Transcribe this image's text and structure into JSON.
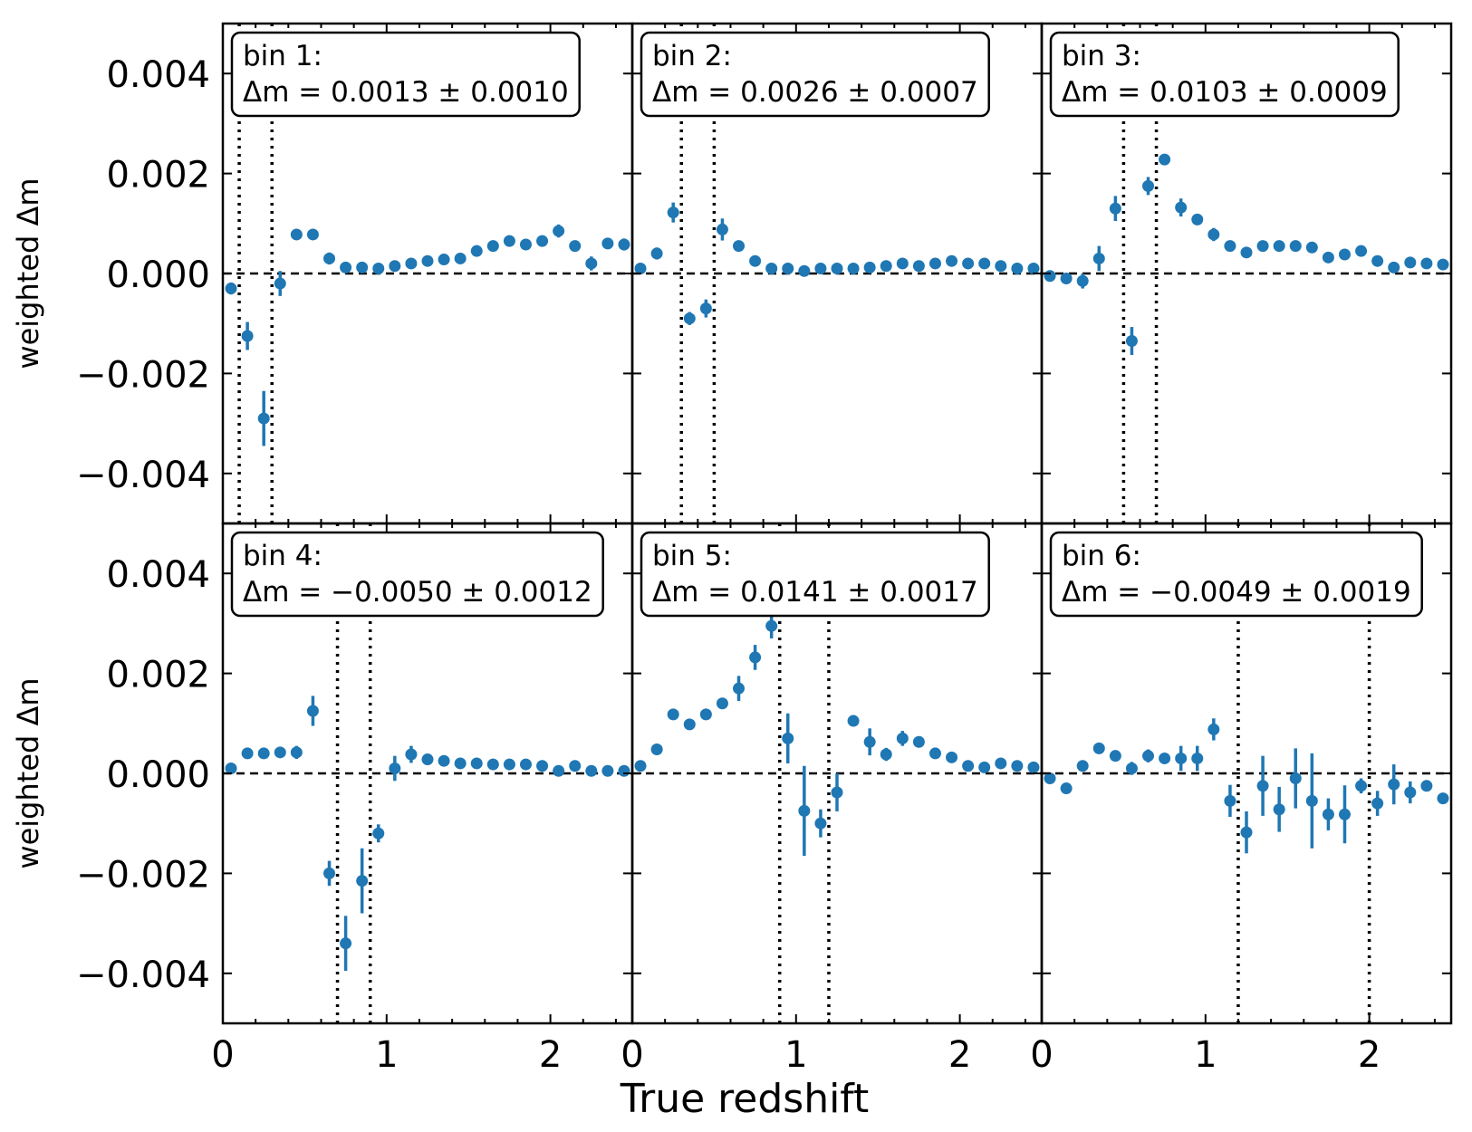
{
  "figure": {
    "xlabel": "True redshift",
    "ylabel_prefix": "weighted ",
    "ylabel_symbol": "Δm"
  },
  "colors": {
    "points": "#1f77b4",
    "axes": "#000000",
    "zero_line": "#000000",
    "bin_edges": "#000000",
    "legend_border": "#000000",
    "background": "#ffffff"
  },
  "chart_data": {
    "type": "scatter",
    "xlim": [
      0,
      2.5
    ],
    "ylim": [
      -0.005,
      0.005
    ],
    "x_ticks": [
      0,
      1,
      2
    ],
    "x_tick_labels": [
      "0",
      "1",
      "2"
    ],
    "y_ticks": [
      -0.004,
      -0.002,
      0.0,
      0.002,
      0.004
    ],
    "y_tick_labels": [
      "−0.004",
      "−0.002",
      "0.000",
      "0.002",
      "0.004"
    ],
    "reference_line": 0,
    "panels": [
      {
        "name": "bin 1",
        "label": "bin 1:",
        "stat_prefix": "Δm = ",
        "stat_value": "0.0013 ± 0.0010",
        "bin_edges": [
          0.1,
          0.3
        ],
        "x": [
          0.05,
          0.15,
          0.25,
          0.35,
          0.45,
          0.55,
          0.65,
          0.75,
          0.85,
          0.95,
          1.05,
          1.15,
          1.25,
          1.35,
          1.45,
          1.55,
          1.65,
          1.75,
          1.85,
          1.95,
          2.05,
          2.15,
          2.25,
          2.35,
          2.45
        ],
        "y": [
          -0.0003,
          -0.00125,
          -0.0029,
          -0.0002,
          0.00078,
          0.00078,
          0.0003,
          0.00012,
          0.00012,
          0.0001,
          0.00015,
          0.0002,
          0.00025,
          0.00028,
          0.0003,
          0.00045,
          0.00055,
          0.00065,
          0.00058,
          0.00065,
          0.00085,
          0.00055,
          0.0002,
          0.0006,
          0.00058
        ],
        "yerr": [
          0.00012,
          0.00028,
          0.00055,
          0.00025,
          8e-05,
          0.0001,
          0.00012,
          5e-05,
          5e-05,
          5e-05,
          5e-05,
          5e-05,
          5e-05,
          6e-05,
          8e-05,
          5e-05,
          5e-05,
          5e-05,
          5e-05,
          5e-05,
          0.00013,
          5e-05,
          0.00014,
          6e-05,
          0.00012
        ]
      },
      {
        "name": "bin 2",
        "label": "bin 2:",
        "stat_prefix": "Δm = ",
        "stat_value": "0.0026 ± 0.0007",
        "bin_edges": [
          0.3,
          0.5
        ],
        "x": [
          0.05,
          0.15,
          0.25,
          0.35,
          0.45,
          0.55,
          0.65,
          0.75,
          0.85,
          0.95,
          1.05,
          1.15,
          1.25,
          1.35,
          1.45,
          1.55,
          1.65,
          1.75,
          1.85,
          1.95,
          2.05,
          2.15,
          2.25,
          2.35,
          2.45
        ],
        "y": [
          0.0001,
          0.0004,
          0.00122,
          -0.0009,
          -0.0007,
          0.00088,
          0.00055,
          0.00025,
          0.0001,
          0.0001,
          5e-05,
          0.0001,
          0.0001,
          0.0001,
          0.00012,
          0.00015,
          0.0002,
          0.00015,
          0.0002,
          0.00025,
          0.0002,
          0.0002,
          0.00015,
          0.0001,
          0.0001
        ],
        "yerr": [
          5e-05,
          0.00012,
          0.0002,
          0.00013,
          0.00018,
          0.00022,
          6e-05,
          5e-05,
          5e-05,
          5e-05,
          5e-05,
          5e-05,
          5e-05,
          5e-05,
          5e-05,
          5e-05,
          5e-05,
          5e-05,
          5e-05,
          5e-05,
          5e-05,
          5e-05,
          5e-05,
          5e-05,
          5e-05
        ]
      },
      {
        "name": "bin 3",
        "label": "bin 3:",
        "stat_prefix": "Δm = ",
        "stat_value": "0.0103 ± 0.0009",
        "bin_edges": [
          0.5,
          0.7
        ],
        "x": [
          0.05,
          0.15,
          0.25,
          0.35,
          0.45,
          0.55,
          0.65,
          0.75,
          0.85,
          0.95,
          1.05,
          1.15,
          1.25,
          1.35,
          1.45,
          1.55,
          1.65,
          1.75,
          1.85,
          1.95,
          2.05,
          2.15,
          2.25,
          2.35,
          2.45
        ],
        "y": [
          -5e-05,
          -0.0001,
          -0.00015,
          0.0003,
          0.0013,
          -0.00135,
          0.00175,
          0.00228,
          0.00132,
          0.00108,
          0.00078,
          0.00055,
          0.00042,
          0.00055,
          0.00055,
          0.00055,
          0.00052,
          0.00032,
          0.00038,
          0.00045,
          0.00025,
          0.00012,
          0.00022,
          0.0002,
          0.00018
        ],
        "yerr": [
          5e-05,
          5e-05,
          0.00015,
          0.00025,
          0.00025,
          0.00028,
          0.00018,
          5e-05,
          0.00018,
          5e-05,
          0.00013,
          5e-05,
          5e-05,
          5e-05,
          5e-05,
          5e-05,
          5e-05,
          5e-05,
          5e-05,
          5e-05,
          5e-05,
          5e-05,
          5e-05,
          5e-05,
          5e-05
        ]
      },
      {
        "name": "bin 4",
        "label": "bin 4:",
        "stat_prefix": "Δm = ",
        "stat_value": "−0.0050 ± 0.0012",
        "bin_edges": [
          0.7,
          0.9
        ],
        "x": [
          0.05,
          0.15,
          0.25,
          0.35,
          0.45,
          0.55,
          0.65,
          0.75,
          0.85,
          0.95,
          1.05,
          1.15,
          1.25,
          1.35,
          1.45,
          1.55,
          1.65,
          1.75,
          1.85,
          1.95,
          2.05,
          2.15,
          2.25,
          2.35,
          2.45
        ],
        "y": [
          0.0001,
          0.0004,
          0.0004,
          0.00042,
          0.00042,
          0.00125,
          -0.002,
          -0.0034,
          -0.00215,
          -0.0012,
          0.0001,
          0.00038,
          0.00028,
          0.00025,
          0.0002,
          0.0002,
          0.00018,
          0.00018,
          0.00018,
          0.00015,
          5e-05,
          0.00015,
          5e-05,
          5e-05,
          5e-05
        ],
        "yerr": [
          5e-05,
          5e-05,
          5e-05,
          5e-05,
          0.00013,
          0.0003,
          0.00025,
          0.00055,
          0.00065,
          0.00018,
          0.00025,
          0.00017,
          5e-05,
          5e-05,
          5e-05,
          5e-05,
          5e-05,
          5e-05,
          5e-05,
          5e-05,
          5e-05,
          5e-05,
          5e-05,
          5e-05,
          5e-05
        ]
      },
      {
        "name": "bin 5",
        "label": "bin 5:",
        "stat_prefix": "Δm = ",
        "stat_value": "0.0141 ± 0.0017",
        "bin_edges": [
          0.9,
          1.2
        ],
        "x": [
          0.05,
          0.15,
          0.25,
          0.35,
          0.45,
          0.55,
          0.65,
          0.75,
          0.85,
          0.95,
          1.05,
          1.15,
          1.25,
          1.35,
          1.45,
          1.55,
          1.65,
          1.75,
          1.85,
          1.95,
          2.05,
          2.15,
          2.25,
          2.35,
          2.45
        ],
        "y": [
          0.00015,
          0.00048,
          0.00118,
          0.00098,
          0.00118,
          0.0014,
          0.0017,
          0.00232,
          0.00295,
          0.0007,
          -0.00075,
          -0.001,
          -0.00038,
          0.00105,
          0.00063,
          0.00038,
          0.0007,
          0.00063,
          0.0004,
          0.00032,
          0.00015,
          0.00012,
          0.0002,
          0.00015,
          0.00012
        ],
        "yerr": [
          5e-05,
          5e-05,
          5e-05,
          5e-05,
          5e-05,
          8e-05,
          0.00025,
          0.00025,
          0.00025,
          0.0005,
          0.0009,
          0.00028,
          0.00038,
          5e-05,
          0.00027,
          0.00013,
          0.00015,
          5e-05,
          5e-05,
          5e-05,
          5e-05,
          5e-05,
          5e-05,
          5e-05,
          5e-05
        ]
      },
      {
        "name": "bin 6",
        "label": "bin 6:",
        "stat_prefix": "Δm = ",
        "stat_value": "−0.0049 ± 0.0019",
        "bin_edges": [
          1.2,
          2.0
        ],
        "x": [
          0.05,
          0.15,
          0.25,
          0.35,
          0.45,
          0.55,
          0.65,
          0.75,
          0.85,
          0.95,
          1.05,
          1.15,
          1.25,
          1.35,
          1.45,
          1.55,
          1.65,
          1.75,
          1.85,
          1.95,
          2.05,
          2.15,
          2.25,
          2.35,
          2.45
        ],
        "y": [
          -0.0001,
          -0.0003,
          0.00015,
          0.0005,
          0.00035,
          0.0001,
          0.00035,
          0.0003,
          0.0003,
          0.0003,
          0.00088,
          -0.00055,
          -0.00118,
          -0.00025,
          -0.00072,
          -0.0001,
          -0.00055,
          -0.00082,
          -0.00082,
          -0.00025,
          -0.0006,
          -0.00022,
          -0.00038,
          -0.00025,
          -0.0005
        ],
        "yerr": [
          5e-05,
          5e-05,
          5e-05,
          5e-05,
          5e-05,
          0.00013,
          0.00013,
          5e-05,
          0.00025,
          0.00025,
          0.00022,
          0.00032,
          0.00042,
          0.0006,
          0.00045,
          0.0006,
          0.00095,
          0.00032,
          0.00058,
          0.00015,
          0.00025,
          0.0004,
          0.00022,
          8e-05,
          5e-05
        ]
      }
    ]
  }
}
